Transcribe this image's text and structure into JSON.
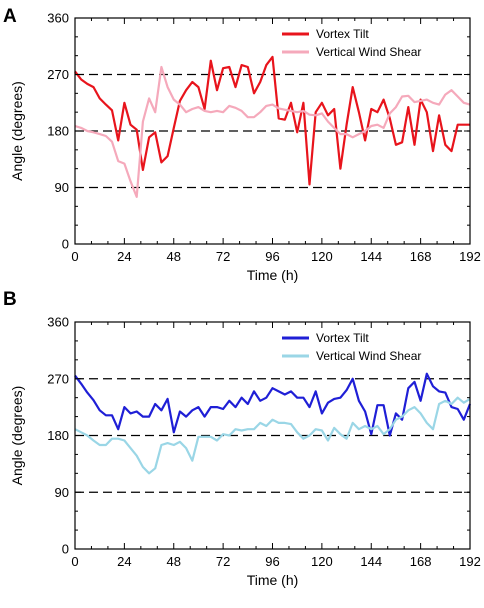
{
  "chart_data": [
    {
      "type": "line",
      "panel_label": "A",
      "xlabel": "Time (h)",
      "ylabel": "Angle (degrees)",
      "xlim": [
        0,
        192
      ],
      "ylim": [
        0,
        360
      ],
      "xticks": [
        0,
        24,
        48,
        72,
        96,
        120,
        144,
        168,
        192
      ],
      "yticks": [
        0,
        90,
        180,
        270,
        360
      ],
      "reference_lines": [
        90,
        180,
        270
      ],
      "legend_position": "top-right",
      "grid": false,
      "series": [
        {
          "name": "Vortex Tilt",
          "color": "#e8141c",
          "x": [
            0,
            3,
            6,
            9,
            12,
            15,
            18,
            21,
            24,
            27,
            30,
            33,
            36,
            39,
            42,
            45,
            48,
            51,
            54,
            57,
            60,
            63,
            66,
            69,
            72,
            75,
            78,
            81,
            84,
            87,
            90,
            93,
            96,
            99,
            102,
            105,
            108,
            111,
            114,
            117,
            120,
            123,
            126,
            129,
            132,
            135,
            138,
            141,
            144,
            147,
            150,
            153,
            156,
            159,
            162,
            165,
            168,
            171,
            174,
            177,
            180,
            183,
            186,
            189,
            192
          ],
          "values": [
            275,
            262,
            255,
            250,
            232,
            222,
            213,
            165,
            225,
            190,
            182,
            118,
            170,
            178,
            130,
            140,
            185,
            228,
            245,
            258,
            250,
            215,
            292,
            245,
            280,
            282,
            250,
            285,
            282,
            240,
            258,
            285,
            298,
            200,
            198,
            225,
            178,
            225,
            95,
            210,
            225,
            205,
            215,
            120,
            190,
            250,
            210,
            165,
            215,
            210,
            230,
            200,
            158,
            162,
            218,
            158,
            230,
            210,
            148,
            205,
            158,
            148,
            190,
            190,
            190
          ]
        },
        {
          "name": "Vertical Wind Shear",
          "color": "#f5a9bb",
          "x": [
            0,
            3,
            6,
            9,
            12,
            15,
            18,
            21,
            24,
            27,
            30,
            33,
            36,
            39,
            42,
            45,
            48,
            51,
            54,
            57,
            60,
            63,
            66,
            69,
            72,
            75,
            78,
            81,
            84,
            87,
            90,
            93,
            96,
            99,
            102,
            105,
            108,
            111,
            114,
            117,
            120,
            123,
            126,
            129,
            132,
            135,
            138,
            141,
            144,
            147,
            150,
            153,
            156,
            159,
            162,
            165,
            168,
            171,
            174,
            177,
            180,
            183,
            186,
            189,
            192
          ],
          "values": [
            188,
            185,
            180,
            178,
            175,
            172,
            163,
            132,
            128,
            100,
            75,
            195,
            232,
            210,
            282,
            250,
            230,
            222,
            210,
            215,
            218,
            212,
            210,
            212,
            210,
            220,
            217,
            212,
            202,
            202,
            210,
            220,
            222,
            216,
            214,
            212,
            210,
            212,
            206,
            205,
            208,
            195,
            185,
            175,
            175,
            170,
            175,
            180,
            188,
            190,
            185,
            208,
            218,
            235,
            236,
            226,
            228,
            230,
            225,
            222,
            238,
            245,
            235,
            225,
            222
          ]
        }
      ]
    },
    {
      "type": "line",
      "panel_label": "B",
      "xlabel": "Time (h)",
      "ylabel": "Angle (degrees)",
      "xlim": [
        0,
        192
      ],
      "ylim": [
        0,
        360
      ],
      "xticks": [
        0,
        24,
        48,
        72,
        96,
        120,
        144,
        168,
        192
      ],
      "yticks": [
        0,
        90,
        180,
        270,
        360
      ],
      "reference_lines": [
        90,
        180,
        270
      ],
      "legend_position": "top-right",
      "grid": false,
      "series": [
        {
          "name": "Vortex Tilt",
          "color": "#1f1fd6",
          "x": [
            0,
            3,
            6,
            9,
            12,
            15,
            18,
            21,
            24,
            27,
            30,
            33,
            36,
            39,
            42,
            45,
            48,
            51,
            54,
            57,
            60,
            63,
            66,
            69,
            72,
            75,
            78,
            81,
            84,
            87,
            90,
            93,
            96,
            99,
            102,
            105,
            108,
            111,
            114,
            117,
            120,
            123,
            126,
            129,
            132,
            135,
            138,
            141,
            144,
            147,
            150,
            153,
            156,
            159,
            162,
            165,
            168,
            171,
            174,
            177,
            180,
            183,
            186,
            189,
            192
          ],
          "values": [
            275,
            262,
            248,
            236,
            220,
            212,
            212,
            190,
            225,
            215,
            218,
            210,
            210,
            230,
            220,
            238,
            185,
            218,
            210,
            220,
            225,
            210,
            225,
            225,
            222,
            235,
            225,
            240,
            230,
            250,
            235,
            240,
            255,
            250,
            245,
            250,
            240,
            240,
            225,
            250,
            215,
            232,
            238,
            240,
            252,
            270,
            235,
            218,
            182,
            228,
            228,
            180,
            215,
            205,
            255,
            265,
            235,
            278,
            258,
            250,
            248,
            225,
            222,
            205,
            230
          ]
        },
        {
          "name": "Vertical Wind Shear",
          "color": "#9ad6e6",
          "x": [
            0,
            3,
            6,
            9,
            12,
            15,
            18,
            21,
            24,
            27,
            30,
            33,
            36,
            39,
            42,
            45,
            48,
            51,
            54,
            57,
            60,
            63,
            66,
            69,
            72,
            75,
            78,
            81,
            84,
            87,
            90,
            93,
            96,
            99,
            102,
            105,
            108,
            111,
            114,
            117,
            120,
            123,
            126,
            129,
            132,
            135,
            138,
            141,
            144,
            147,
            150,
            153,
            156,
            159,
            162,
            165,
            168,
            171,
            174,
            177,
            180,
            183,
            186,
            189,
            192
          ],
          "values": [
            190,
            185,
            180,
            172,
            165,
            165,
            175,
            175,
            172,
            160,
            148,
            130,
            120,
            128,
            165,
            168,
            165,
            170,
            160,
            140,
            178,
            178,
            178,
            172,
            182,
            180,
            190,
            188,
            190,
            190,
            200,
            195,
            205,
            200,
            200,
            198,
            185,
            175,
            180,
            190,
            188,
            172,
            192,
            182,
            175,
            200,
            190,
            195,
            190,
            195,
            182,
            190,
            205,
            210,
            220,
            225,
            215,
            200,
            190,
            230,
            235,
            230,
            240,
            232,
            238
          ]
        }
      ]
    }
  ]
}
